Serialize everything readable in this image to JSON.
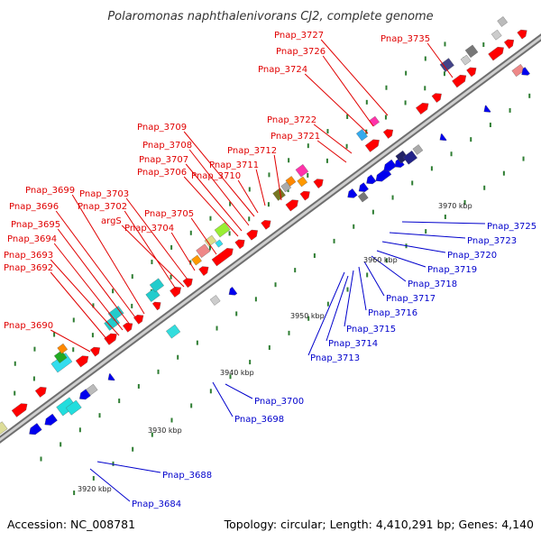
{
  "title": "Polaromonas naphthalenivorans CJ2, complete genome",
  "footer": {
    "accession": "Accession: NC_008781",
    "summary": "Topology: circular; Length: 4,410,291 bp; Genes: 4,140"
  },
  "colors": {
    "forward_label": "#e00000",
    "reverse_label": "#0000cc",
    "backbone": "#9a9a9a",
    "forward_gene": "#ff0000",
    "reverse_gene": "#0000ee",
    "tick": "#2e7d32"
  },
  "scale_labels": [
    "3920 kbp",
    "3930 kbp",
    "3940 kbp",
    "3950 kbp",
    "3960 kbp",
    "3970 kbp"
  ],
  "forward_labels": [
    "Pnap_3690",
    "Pnap_3692",
    "Pnap_3693",
    "Pnap_3694",
    "Pnap_3695",
    "Pnap_3696",
    "Pnap_3699",
    "Pnap_3702",
    "argS",
    "Pnap_3703",
    "Pnap_3704",
    "Pnap_3705",
    "Pnap_3706",
    "Pnap_3707",
    "Pnap_3708",
    "Pnap_3709",
    "Pnap_3710",
    "Pnap_3711",
    "Pnap_3712",
    "Pnap_3721",
    "Pnap_3722",
    "Pnap_3724",
    "Pnap_3726",
    "Pnap_3727",
    "Pnap_3735"
  ],
  "reverse_labels": [
    "Pnap_3684",
    "Pnap_3688",
    "Pnap_3698",
    "Pnap_3700",
    "Pnap_3713",
    "Pnap_3714",
    "Pnap_3715",
    "Pnap_3716",
    "Pnap_3717",
    "Pnap_3718",
    "Pnap_3719",
    "Pnap_3720",
    "Pnap_3723",
    "Pnap_3725"
  ]
}
